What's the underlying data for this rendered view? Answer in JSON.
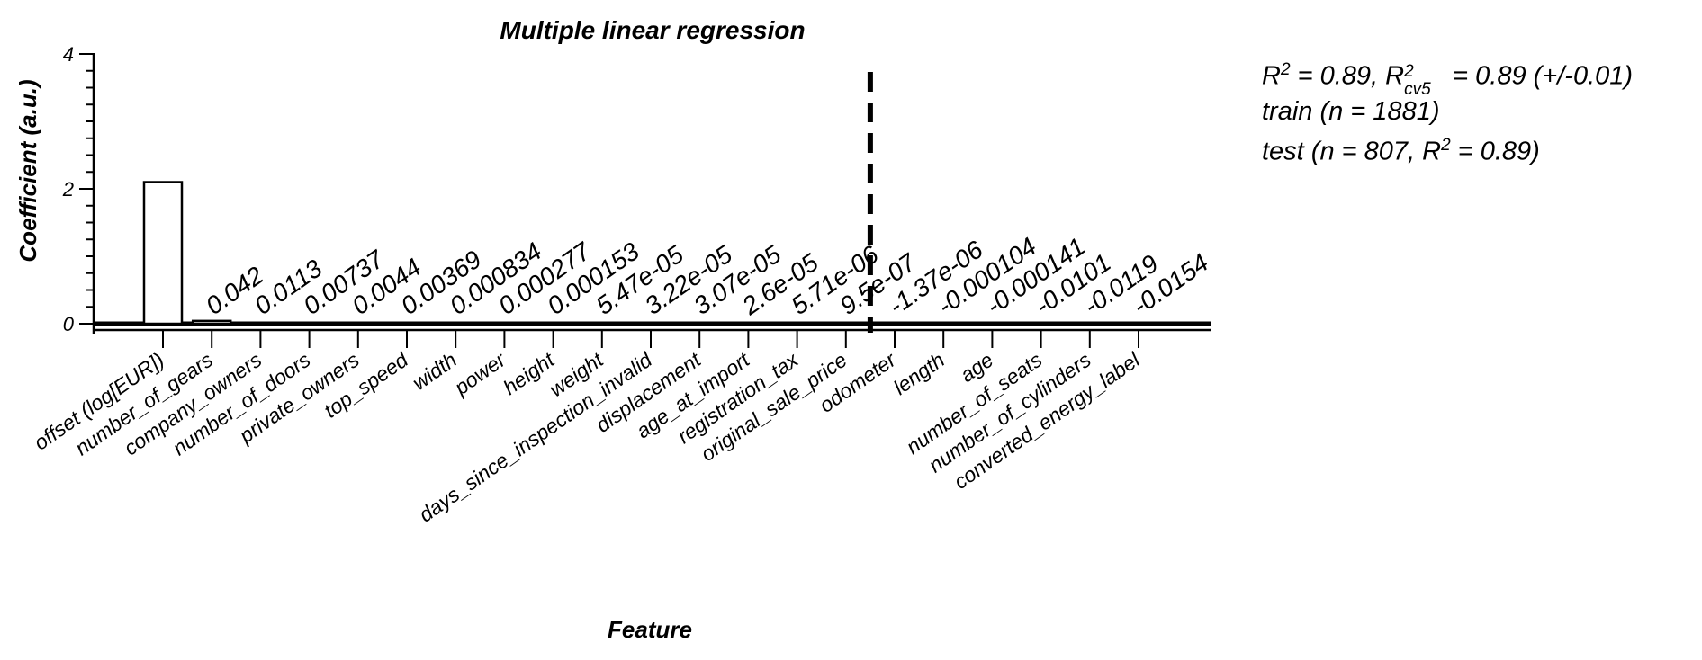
{
  "chart_data": {
    "type": "bar",
    "title": "Multiple linear regression",
    "xlabel": "Feature",
    "ylabel": "Coefficient (a.u.)",
    "ylim": [
      0,
      4
    ],
    "yticks": [
      "0",
      "2",
      "4"
    ],
    "categories": [
      "offset (log[EUR])",
      "number_of_gears",
      "company_owners",
      "number_of_doors",
      "private_owners",
      "top_speed",
      "width",
      "power",
      "height",
      "weight",
      "days_since_inspection_invalid",
      "displacement",
      "age_at_import",
      "registration_tax",
      "original_sale_price",
      "odometer",
      "length",
      "age",
      "number_of_seats",
      "number_of_cylinders",
      "converted_energy_label"
    ],
    "values": [
      2.1,
      0.042,
      0.0113,
      0.00737,
      0.0044,
      0.00369,
      0.000834,
      0.000277,
      0.000153,
      5.47e-05,
      3.22e-05,
      3.07e-05,
      2.6e-05,
      5.71e-06,
      9.5e-07,
      -1.37e-06,
      -0.000104,
      -0.000141,
      -0.0101,
      -0.0119,
      -0.0154
    ],
    "data_labels": [
      "",
      "0.042",
      "0.0113",
      "0.00737",
      "0.0044",
      "0.00369",
      "0.000834",
      "0.000277",
      "0.000153",
      "5.47e-05",
      "3.22e-05",
      "3.07e-05",
      "2.6e-05",
      "5.71e-06",
      "9.5e-07",
      "-1.37e-06",
      "-0.000104",
      "-0.000141",
      "-0.0101",
      "-0.0119",
      "-0.0154"
    ],
    "grid": false,
    "legend": "none"
  },
  "annotations": {
    "r2_prefix": "R",
    "r2_sup": "2",
    "r2_mid": " = 0.89, R",
    "r2cv_sup": "2",
    "r2cv_sub": "cv5",
    "r2cv_value": " = 0.89 (+/-0.01)",
    "train": "train (n = 1881)",
    "test_prefix": "test (n = 807, R",
    "test_sup": "2",
    "test_suffix": " = 0.89)"
  }
}
